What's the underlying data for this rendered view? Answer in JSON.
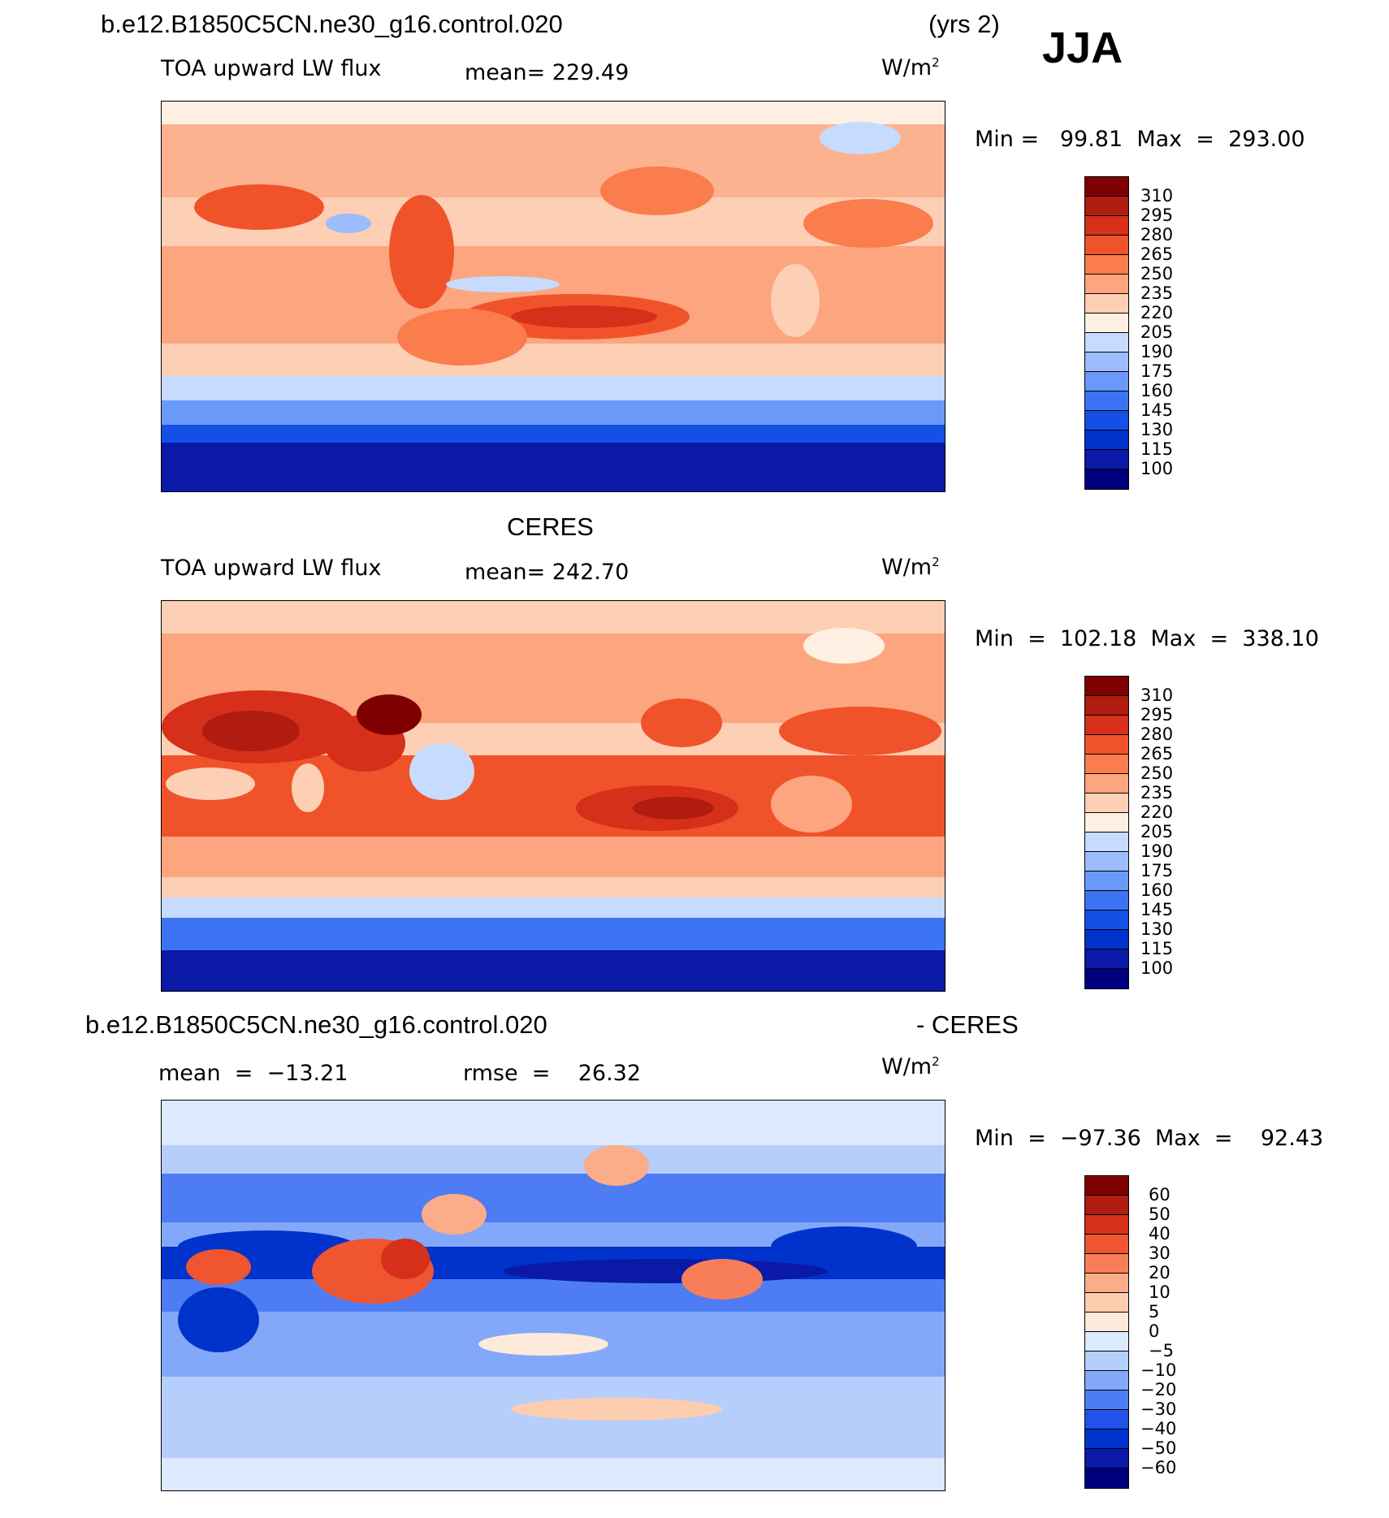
{
  "header": {
    "case": "b.e12.B1850C5CN.ne30_g16.control.020",
    "years": "(yrs 2)",
    "season": "JJA"
  },
  "colors": {
    "abs_levels": [
      "#00007f",
      "#0a1aa6",
      "#0033cc",
      "#1550e6",
      "#3b73f2",
      "#6a99fa",
      "#9dbcfb",
      "#c6dbfd",
      "#fdf0e2",
      "#fdcfb4",
      "#fca57f",
      "#fb7c4c",
      "#f0532a",
      "#d6301a",
      "#b01c0f",
      "#7f0000"
    ],
    "diff_levels": [
      "#00007f",
      "#0a1aa6",
      "#0033cc",
      "#2252ea",
      "#4d7cf5",
      "#83a8fa",
      "#b6cefc",
      "#dce9fe",
      "#fdeadb",
      "#fdcdb0",
      "#fbac89",
      "#f77e58",
      "#ef5530",
      "#d6301a",
      "#b01c0f",
      "#7f0000"
    ]
  },
  "panels": [
    {
      "title": "",
      "variable": "TOA upward LW flux",
      "mean_label": "mean= 229.49",
      "units": "W/m",
      "units_sup": "2",
      "minmax": "Min =   99.81  Max  =  293.00",
      "colorbar_labels": [
        "310",
        "295",
        "280",
        "265",
        "250",
        "235",
        "220",
        "205",
        "190",
        "175",
        "160",
        "145",
        "130",
        "115",
        "100"
      ]
    },
    {
      "title": "CERES",
      "variable": "TOA upward LW flux",
      "mean_label": "mean= 242.70",
      "units": "W/m",
      "units_sup": "2",
      "minmax": "Min  =  102.18  Max  =  338.10",
      "colorbar_labels": [
        "310",
        "295",
        "280",
        "265",
        "250",
        "235",
        "220",
        "205",
        "190",
        "175",
        "160",
        "145",
        "130",
        "115",
        "100"
      ]
    },
    {
      "title_left": "b.e12.B1850C5CN.ne30_g16.control.020",
      "title_right": "- CERES",
      "mean_label": "mean  =  −13.21",
      "rmse_label": "rmse  =    26.32",
      "units": "W/m",
      "units_sup": "2",
      "minmax": "Min  =  −97.36  Max  =    92.43",
      "colorbar_labels": [
        "60",
        "50",
        "40",
        "30",
        "20",
        "10",
        "5",
        "0",
        "−5",
        "−10",
        "−20",
        "−30",
        "−40",
        "−50",
        "−60"
      ]
    }
  ]
}
